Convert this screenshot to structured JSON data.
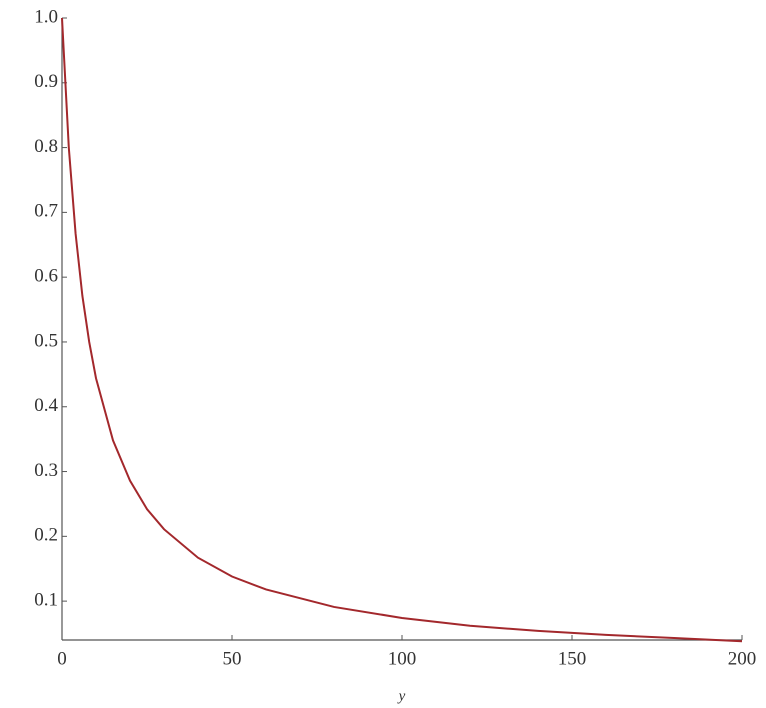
{
  "chart_data": {
    "type": "line",
    "x_label": "y",
    "x": [
      0,
      2,
      4,
      6,
      8,
      10,
      15,
      20,
      25,
      30,
      40,
      50,
      60,
      80,
      100,
      120,
      140,
      160,
      180,
      200
    ],
    "series": [
      {
        "color": "#a3282c",
        "values": [
          1.0,
          0.8,
          0.667,
          0.571,
          0.5,
          0.444,
          0.348,
          0.286,
          0.242,
          0.211,
          0.167,
          0.138,
          0.118,
          0.091,
          0.074,
          0.062,
          0.054,
          0.048,
          0.043,
          0.038
        ]
      }
    ],
    "xlim": [
      0,
      200
    ],
    "ylim": [
      0.04,
      1.0
    ],
    "xticks": [
      0,
      50,
      100,
      150,
      200
    ],
    "yticks": [
      0.1,
      0.2,
      0.3,
      0.4,
      0.5,
      0.6,
      0.7,
      0.8,
      0.9,
      {
        "value": 1.0,
        "label": "1.0"
      }
    ],
    "grid": false
  }
}
